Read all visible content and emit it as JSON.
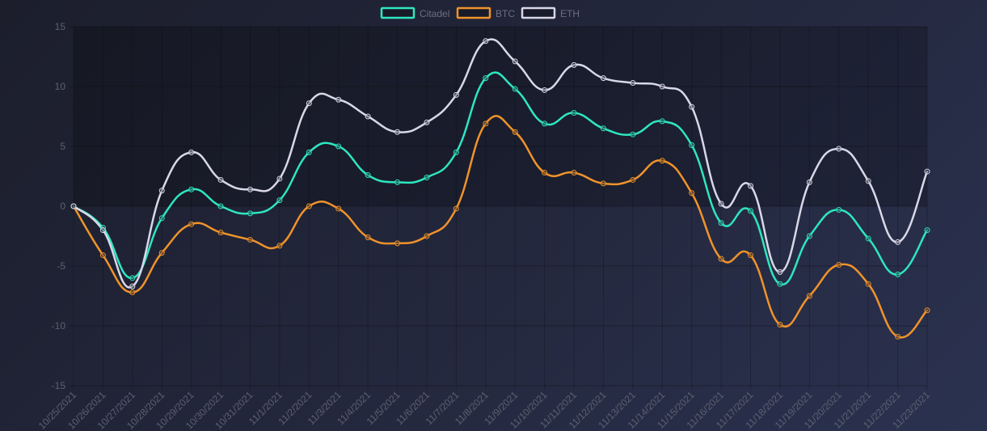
{
  "chart_data": {
    "type": "line",
    "title": "",
    "xlabel": "",
    "ylabel": "",
    "ylim": [
      -15,
      15
    ],
    "yticks": [
      15,
      10,
      5,
      0,
      -5,
      -10,
      -15
    ],
    "grid": true,
    "legend_position": "top-center",
    "categories": [
      "10/25/2021",
      "10/26/2021",
      "10/27/2021",
      "10/28/2021",
      "10/29/2021",
      "10/30/2021",
      "10/31/2021",
      "11/1/2021",
      "11/2/2021",
      "11/3/2021",
      "11/4/2021",
      "11/5/2021",
      "11/6/2021",
      "11/7/2021",
      "11/8/2021",
      "11/9/2021",
      "11/10/2021",
      "11/11/2021",
      "11/12/2021",
      "11/13/2021",
      "11/14/2021",
      "11/15/2021",
      "11/16/2021",
      "11/17/2021",
      "11/18/2021",
      "11/19/2021",
      "11/20/2021",
      "11/21/2021",
      "11/22/2021",
      "11/23/2021"
    ],
    "series": [
      {
        "name": "Citadel",
        "color": "#2ee6c0",
        "values": [
          0,
          -1.8,
          -6.0,
          -1.0,
          1.4,
          0,
          -0.6,
          0.5,
          4.5,
          5.0,
          2.6,
          2.0,
          2.4,
          4.5,
          10.7,
          9.8,
          6.9,
          7.8,
          6.5,
          6.0,
          7.1,
          5.1,
          -1.4,
          -0.4,
          -6.5,
          -2.5,
          -0.3,
          -2.7,
          -5.7,
          -2.0
        ]
      },
      {
        "name": "BTC",
        "color": "#f0932b",
        "values": [
          0,
          -4.1,
          -7.2,
          -3.9,
          -1.5,
          -2.2,
          -2.8,
          -3.3,
          0,
          -0.2,
          -2.6,
          -3.1,
          -2.5,
          -0.2,
          6.9,
          6.2,
          2.8,
          2.8,
          1.9,
          2.2,
          3.8,
          1.1,
          -4.4,
          -4.1,
          -9.9,
          -7.5,
          -4.9,
          -6.5,
          -10.9,
          -8.7
        ]
      },
      {
        "name": "ETH",
        "color": "#d8d8e8",
        "values": [
          0,
          -2.0,
          -6.7,
          1.3,
          4.5,
          2.2,
          1.4,
          2.3,
          8.6,
          8.9,
          7.5,
          6.2,
          7.0,
          9.3,
          13.8,
          12.1,
          9.7,
          11.8,
          10.7,
          10.3,
          10.0,
          8.3,
          0.2,
          1.7,
          -5.5,
          2.0,
          4.8,
          2.1,
          -3.0,
          2.9
        ]
      }
    ]
  }
}
